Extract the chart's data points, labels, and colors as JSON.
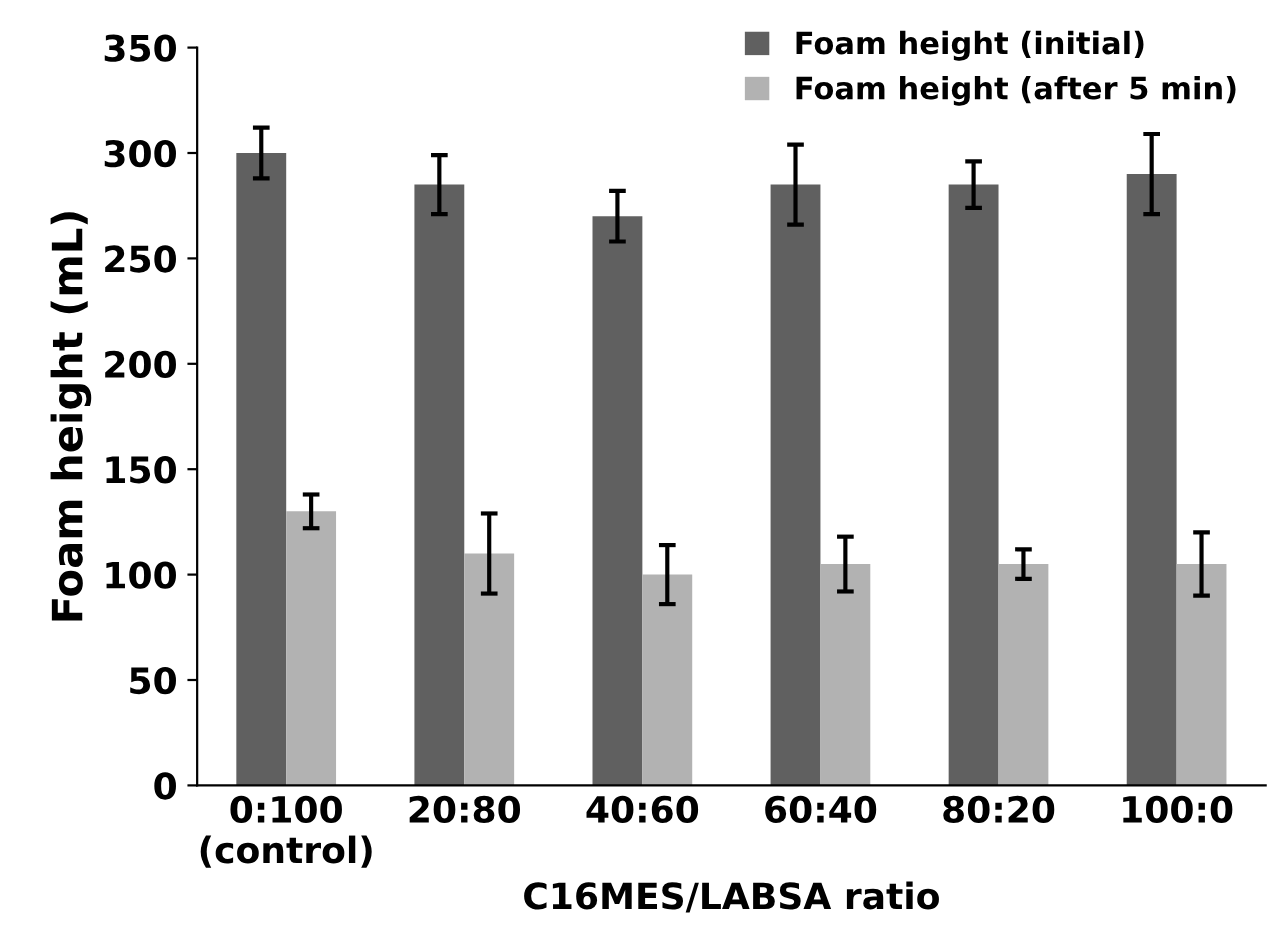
{
  "chart_data": {
    "type": "bar",
    "xlabel": "C16MES/LABSA ratio",
    "ylabel": "Foam height (mL)",
    "categories": [
      "0:100\n(control)",
      "20:80",
      "40:60",
      "60:40",
      "80:20",
      "100:0"
    ],
    "series": [
      {
        "name": "Foam height (initial)",
        "color": "#606060",
        "values": [
          300,
          285,
          270,
          285,
          285,
          290
        ],
        "errors": [
          12,
          14,
          12,
          19,
          11,
          19
        ]
      },
      {
        "name": "Foam height (after 5 min)",
        "color": "#b2b2b2",
        "values": [
          130,
          110,
          100,
          105,
          105,
          105
        ],
        "errors": [
          8,
          19,
          14,
          13,
          7,
          15
        ]
      }
    ],
    "ylim": [
      0,
      350
    ],
    "yticks": [
      0,
      50,
      100,
      150,
      200,
      250,
      300,
      350
    ],
    "grid": false,
    "legend": "top right"
  }
}
